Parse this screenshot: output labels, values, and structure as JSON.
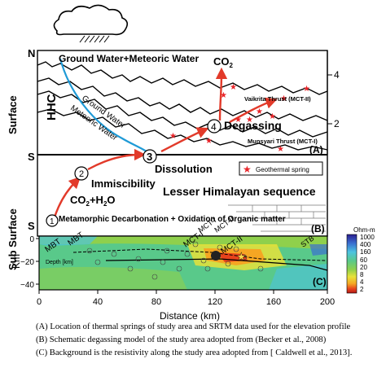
{
  "labels": {
    "north": "N",
    "ground_water": "Ground Water+Meteoric Water",
    "co2_top": "CO",
    "co2_sub": "2",
    "hhc": "HHC",
    "degassing": "Degassing",
    "ground_water_diag": "Ground Water",
    "meteoric_water_diag": "Meteoric Water",
    "vaikrita": "Vaikrita Thrust (MCT-II)",
    "munsyari": "Munsyari Thrust (MCT-I)",
    "panel_a": "(A)",
    "panel_b": "(B)",
    "panel_c": "(C)",
    "south_1": "S",
    "south_2": "S",
    "dissolution": "Dissolution",
    "immiscibility": "Immiscibility",
    "co2_h2o": "CO",
    "co2_h2o_sub": "2",
    "co2_h2o_rest": "+H",
    "h2o_sub": "2",
    "h2o_o": "O",
    "legend_geothermal": "Geothermal spring",
    "lesser_himalayan": "Lesser Himalayan sequence",
    "metamorphic": "Metamorphic Decarbonation + Oxidation of Organic matter",
    "step1": "1",
    "step2": "2",
    "step3": "3",
    "step4": "4",
    "surface": "Surface",
    "sub_surface": "Sub Surface",
    "km": "Km",
    "depth_km": "Depth [km]",
    "mbt1": "MBT",
    "mbt2": "MBT",
    "mct1": "MCT-I",
    "mct2": "MCT-II",
    "mct1_b": "MCT-I",
    "mct2_b": "MCT-II",
    "stb": "STB",
    "ohm_m": "Ohm-m",
    "xlabel": "Distance (km)"
  },
  "right_axis": [
    "4",
    "2"
  ],
  "depth_ticks": [
    "0",
    "−20",
    "−40"
  ],
  "x_ticks": [
    "0",
    "40",
    "80",
    "120",
    "160",
    "200"
  ],
  "resistivity_scale": [
    "1000",
    "400",
    "160",
    "60",
    "20",
    "8",
    "4",
    "2"
  ],
  "resistivity_colors": [
    "#2b1f8f",
    "#3a6fd0",
    "#4cc3e0",
    "#59c98a",
    "#8fd04c",
    "#e8e23a",
    "#f5a623",
    "#e8421c",
    "#b01818"
  ],
  "colors": {
    "arrow_red": "#e23a2a",
    "water_blue": "#1f9ad6",
    "star_red": "#e8252a"
  },
  "captions": [
    "(A) Location of thermal springs of study area and SRTM data used for the elevation profile",
    "(B) Schematic degassing model of the study area adopted from (Becker et al., 2008)",
    "(C) Background is the resistivity along the study area adopted from [ Caldwell et al., 2013]."
  ]
}
